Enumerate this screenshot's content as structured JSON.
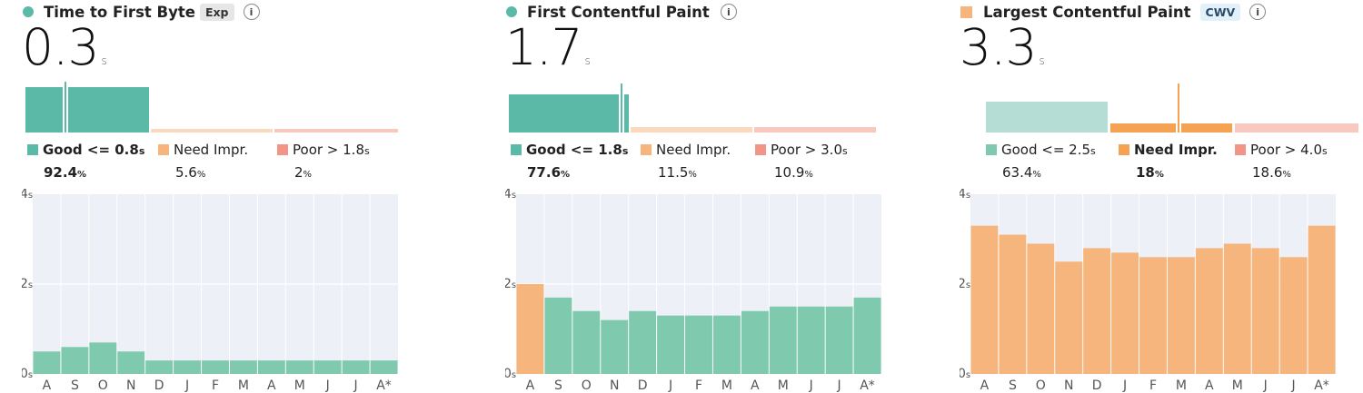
{
  "colors": {
    "good": "#5bb9a7",
    "good_light": "#b5ddd5",
    "good_bar": "#7fcaae",
    "ni": "#f6b57d",
    "ni_strong": "#f5a253",
    "ni_faint": "#fbd9bd",
    "poor": "#f19686",
    "poor_faint": "#f9c8bf",
    "chart_bg": "#edf1f7",
    "grid": "#ffffff"
  },
  "months": [
    "A",
    "S",
    "O",
    "N",
    "D",
    "J",
    "F",
    "M",
    "A",
    "M",
    "J",
    "J",
    "A*"
  ],
  "y_ticks": [
    {
      "num": "4",
      "unit": "s",
      "value": 4
    },
    {
      "num": "2",
      "unit": "s",
      "value": 2
    },
    {
      "num": "0",
      "unit": "s",
      "value": 0
    }
  ],
  "panels": [
    {
      "title": "Time to First Byte",
      "badge": "Exp",
      "info": "i",
      "value_num": "0.3",
      "value_unit": "s",
      "legend": {
        "good": {
          "label": "Good <= 0.8",
          "unit": "s",
          "pct_num": "92.4",
          "pct_unit": "%"
        },
        "ni": {
          "label": "Need Impr.",
          "pct_num": "5.6",
          "pct_unit": "%"
        },
        "poor": {
          "label": "Poor > 1.8",
          "unit": "s",
          "pct_num": "2",
          "pct_unit": "%"
        }
      },
      "chart_data": {
        "type": "bar",
        "categories": [
          "A",
          "S",
          "O",
          "N",
          "D",
          "J",
          "F",
          "M",
          "A",
          "M",
          "J",
          "J",
          "A*"
        ],
        "values": [
          0.5,
          0.6,
          0.7,
          0.5,
          0.3,
          0.3,
          0.3,
          0.3,
          0.3,
          0.3,
          0.3,
          0.3,
          0.3
        ],
        "bar_status": [
          "good",
          "good",
          "good",
          "good",
          "good",
          "good",
          "good",
          "good",
          "good",
          "good",
          "good",
          "good",
          "good"
        ],
        "ylim": [
          0,
          4
        ],
        "grid": true
      }
    },
    {
      "title": "First Contentful Paint",
      "badge": "",
      "info": "i",
      "value_num": "1.7",
      "value_unit": "s",
      "legend": {
        "good": {
          "label": "Good <= 1.8",
          "unit": "s",
          "pct_num": "77.6",
          "pct_unit": "%"
        },
        "ni": {
          "label": "Need Impr.",
          "pct_num": "11.5",
          "pct_unit": "%"
        },
        "poor": {
          "label": "Poor > 3.0",
          "unit": "s",
          "pct_num": "10.9",
          "pct_unit": "%"
        }
      },
      "chart_data": {
        "type": "bar",
        "categories": [
          "A",
          "S",
          "O",
          "N",
          "D",
          "J",
          "F",
          "M",
          "A",
          "M",
          "J",
          "J",
          "A*"
        ],
        "values": [
          2.0,
          1.7,
          1.4,
          1.2,
          1.4,
          1.3,
          1.3,
          1.3,
          1.4,
          1.5,
          1.5,
          1.5,
          1.7
        ],
        "bar_status": [
          "ni",
          "good",
          "good",
          "good",
          "good",
          "good",
          "good",
          "good",
          "good",
          "good",
          "good",
          "good",
          "good"
        ],
        "ylim": [
          0,
          4
        ],
        "grid": true
      }
    },
    {
      "title": "Largest Contentful Paint",
      "badge": "CWV",
      "info": "i",
      "value_num": "3.3",
      "value_unit": "s",
      "legend": {
        "good": {
          "label": "Good <= 2.5",
          "unit": "s",
          "pct_num": "63.4",
          "pct_unit": "%"
        },
        "ni": {
          "label": "Need Impr.",
          "pct_num": "18",
          "pct_unit": "%"
        },
        "poor": {
          "label": "Poor > 4.0",
          "unit": "s",
          "pct_num": "18.6",
          "pct_unit": "%"
        }
      },
      "chart_data": {
        "type": "bar",
        "categories": [
          "A",
          "S",
          "O",
          "N",
          "D",
          "J",
          "F",
          "M",
          "A",
          "M",
          "J",
          "J",
          "A*"
        ],
        "values": [
          3.3,
          3.1,
          2.9,
          2.5,
          2.8,
          2.7,
          2.6,
          2.6,
          2.8,
          2.9,
          2.8,
          2.6,
          3.3
        ],
        "bar_status": [
          "ni",
          "ni",
          "ni",
          "ni",
          "ni",
          "ni",
          "ni",
          "ni",
          "ni",
          "ni",
          "ni",
          "ni",
          "ni"
        ],
        "ylim": [
          0,
          4
        ],
        "grid": true
      }
    }
  ]
}
